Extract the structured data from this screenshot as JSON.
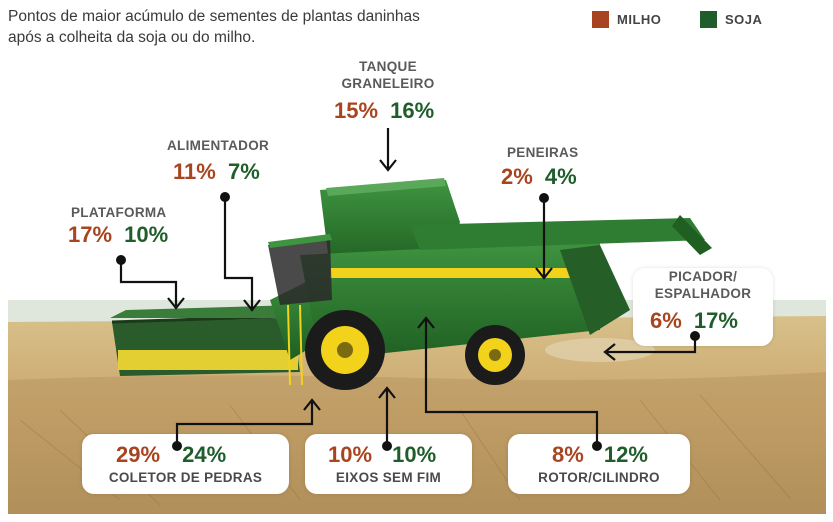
{
  "header": {
    "subtitle_line1": "Pontos de maior acúmulo de sementes de plantas daninhas",
    "subtitle_line2": "após a colheita da soja ou do milho."
  },
  "legend": {
    "milho": {
      "label": "MILHO",
      "color": "#a8441f"
    },
    "soja": {
      "label": "SOJA",
      "color": "#1f5d2b"
    }
  },
  "callouts": {
    "tanque": {
      "line1": "TANQUE",
      "line2": "GRANELEIRO",
      "milho": "15%",
      "soja": "16%"
    },
    "alimentador": {
      "label": "ALIMENTADOR",
      "milho": "11%",
      "soja": "7%"
    },
    "peneiras": {
      "label": "PENEIRAS",
      "milho": "2%",
      "soja": "4%"
    },
    "plataforma": {
      "label": "PLATAFORMA",
      "milho": "17%",
      "soja": "10%"
    },
    "picador": {
      "line1": "PICADOR/",
      "line2": "ESPALHADOR",
      "milho": "6%",
      "soja": "17%"
    },
    "coletor": {
      "label": "COLETOR DE PEDRAS",
      "milho": "29%",
      "soja": "24%"
    },
    "eixos": {
      "label": "EIXOS SEM FIM",
      "milho": "10%",
      "soja": "10%"
    },
    "rotor": {
      "label": "ROTOR/CILINDRO",
      "milho": "8%",
      "soja": "12%"
    }
  },
  "colors": {
    "combine_green": "#2f7d32",
    "combine_yellow": "#f2d21a",
    "sky": "#eef0ee",
    "field": "#c9a66b"
  },
  "image": {
    "subject": "combine-harvester-in-field"
  }
}
